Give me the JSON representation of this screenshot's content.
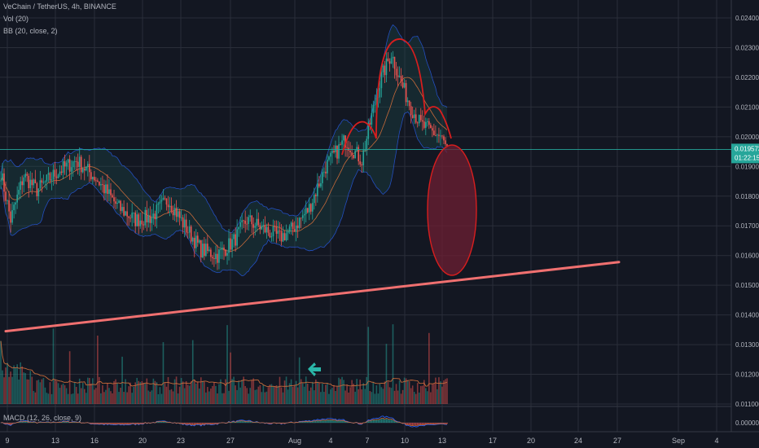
{
  "header": {
    "symbol_line": "VeChain / TetherUS, 4h, BINANCE",
    "vol_line": "Vol (20)",
    "bb_line": "BB (20, close, 2)",
    "macd_line": "MACD (12, 26, close, 9)"
  },
  "price_badge": {
    "price": "0.019573",
    "countdown": "01:22:15"
  },
  "colors": {
    "background": "#131722",
    "up": "#26a69a",
    "down": "#ef5350",
    "bb_line": "#2962ff",
    "bb_fill": "#1e4a4a",
    "sma": "#c66a3a",
    "trendline": "#f07070",
    "pattern": "#d81e1e",
    "ellipse_fill": "#6e1f33",
    "price_line": "#26a69a",
    "arrow": "#2bb7a9"
  },
  "chart_data": {
    "type": "candlestick",
    "y_axis_ticks": [
      "0.024000",
      "0.023000",
      "0.022000",
      "0.021000",
      "0.020000",
      "0.019000",
      "0.018000",
      "0.017000",
      "0.016000",
      "0.015000",
      "0.014000",
      "0.013000",
      "0.012000",
      "0.011000"
    ],
    "macd_axis_tick": "0.000000",
    "x_axis_ticks": [
      "9",
      "13",
      "16",
      "20",
      "23",
      "27",
      "Aug",
      "4",
      "7",
      "10",
      "13",
      "17",
      "20",
      "24",
      "27",
      "Sep",
      "4"
    ],
    "ylim": [
      0.011,
      0.0242
    ],
    "last_price": 0.019573,
    "trendline": {
      "start": [
        "9",
        0.01345
      ],
      "end": [
        "27",
        0.01578
      ]
    },
    "annotations": [
      "head-and-shoulders outline over the August top",
      "shaded ellipse forecasting a drop toward the trendline",
      "arrow marker pointing left at volume panel"
    ]
  }
}
